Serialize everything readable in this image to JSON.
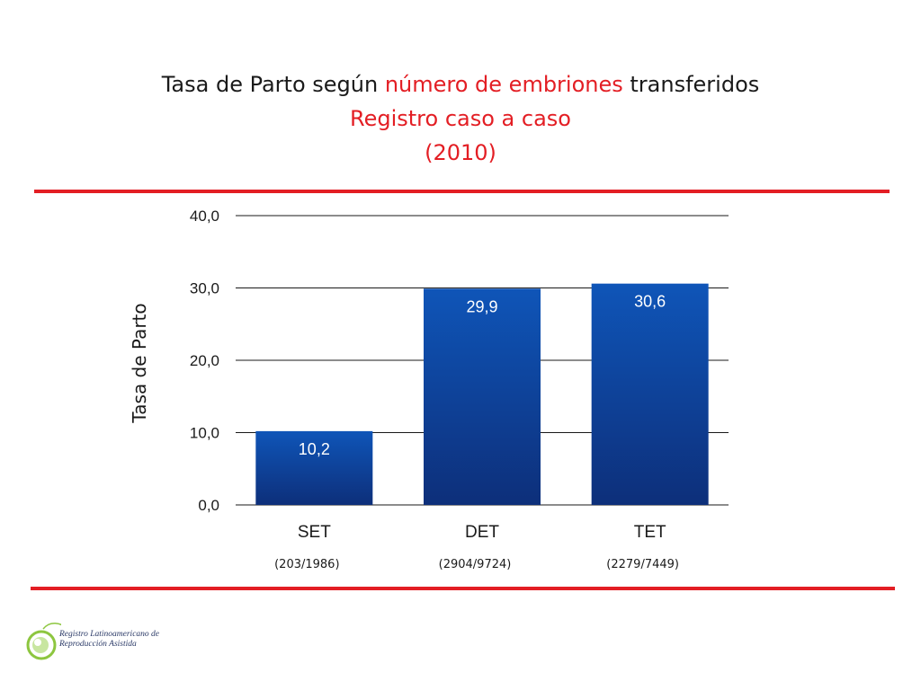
{
  "title": {
    "line1_part1": "Tasa de Parto según ",
    "line1_part2": "número de embriones",
    "line1_part3": " transferidos",
    "line2": "Registro caso a caso",
    "line3": "(2010)"
  },
  "colors": {
    "accent_red": "#e31e24",
    "bar_top": "#0f55b8",
    "bar_bottom": "#0d2f7a"
  },
  "chart_data": {
    "type": "bar",
    "title": "",
    "ylabel": "Tasa de Parto",
    "xlabel": "",
    "ylim": [
      0,
      40
    ],
    "yticks": [
      "0,0",
      "10,0",
      "20,0",
      "30,0",
      "40,0"
    ],
    "ytick_values": [
      0,
      10,
      20,
      30,
      40
    ],
    "categories": [
      "SET",
      "DET",
      "TET"
    ],
    "values": [
      10.2,
      29.9,
      30.6
    ],
    "value_labels": [
      "10,2",
      "29,9",
      "30,6"
    ],
    "category_sublabels": [
      "(203/1986)",
      "(2904/9724)",
      "(2279/7449)"
    ],
    "grid": true,
    "legend": "none"
  },
  "logo": {
    "line1": "Registro Latinoamericano de",
    "line2": "Reproducción Asistida"
  }
}
